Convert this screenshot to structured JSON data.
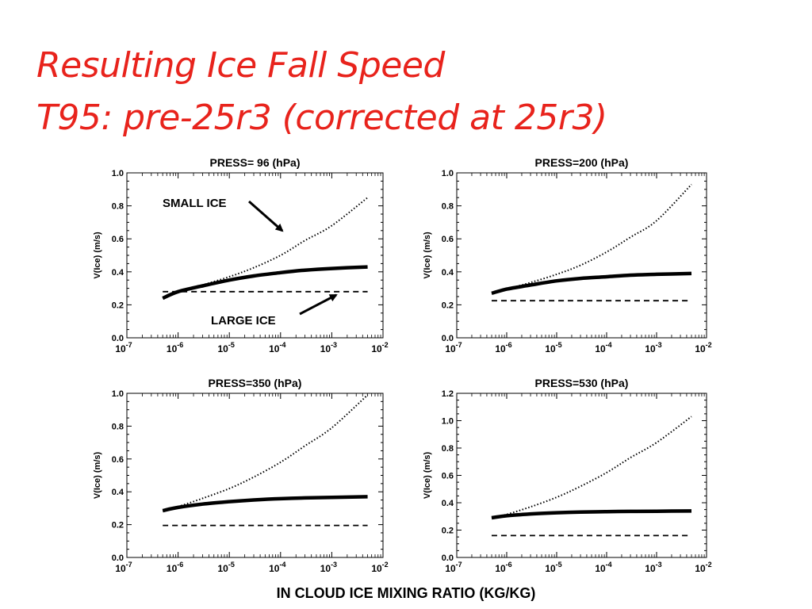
{
  "slide": {
    "title_line1": "Resulting Ice Fall Speed",
    "title_line2": "T95: pre-25r3 (corrected at 25r3)",
    "shared_xlabel": "IN CLOUD ICE MIXING RATIO (KG/KG)",
    "annotations": {
      "small_ice": "SMALL ICE",
      "large_ice": "LARGE ICE"
    },
    "colors": {
      "title": "#e8231c",
      "ink": "#000000"
    }
  },
  "chart_data": [
    {
      "type": "line",
      "title": "PRESS= 96 (hPa)",
      "ylabel": "V(Ice) (m/s)",
      "xscale": "log",
      "xlim": [
        1e-07,
        0.01
      ],
      "xtick_labels": [
        [
          "10",
          "-7"
        ],
        [
          "10",
          "-6"
        ],
        [
          "10",
          "-5"
        ],
        [
          "10",
          "-4"
        ],
        [
          "10",
          "-3"
        ],
        [
          "10",
          "-2"
        ]
      ],
      "ylim": [
        0.0,
        1.0
      ],
      "yticks": [
        "0.0",
        "0.2",
        "0.4",
        "0.6",
        "0.8",
        "1.0"
      ],
      "x": [
        5e-07,
        1e-06,
        3e-06,
        1e-05,
        3e-05,
        0.0001,
        0.0003,
        0.001,
        0.005
      ],
      "series": [
        {
          "style": "dotted",
          "values": [
            0.24,
            0.275,
            0.32,
            0.37,
            0.425,
            0.5,
            0.59,
            0.68,
            0.85
          ]
        },
        {
          "style": "solid",
          "values": [
            0.24,
            0.28,
            0.315,
            0.35,
            0.375,
            0.395,
            0.41,
            0.42,
            0.43
          ]
        },
        {
          "style": "dashed",
          "values": [
            0.28,
            0.28,
            0.28,
            0.28,
            0.28,
            0.28,
            0.28,
            0.28,
            0.28
          ]
        }
      ]
    },
    {
      "type": "line",
      "title": "PRESS=200 (hPa)",
      "ylabel": "V(Ice) (m/s)",
      "xscale": "log",
      "xlim": [
        1e-07,
        0.01
      ],
      "xtick_labels": [
        [
          "10",
          "-7"
        ],
        [
          "10",
          "-6"
        ],
        [
          "10",
          "-5"
        ],
        [
          "10",
          "-4"
        ],
        [
          "10",
          "-3"
        ],
        [
          "10",
          "-2"
        ]
      ],
      "ylim": [
        0.0,
        1.0
      ],
      "yticks": [
        "0.0",
        "0.2",
        "0.4",
        "0.6",
        "0.8",
        "1.0"
      ],
      "x": [
        5e-07,
        1e-06,
        3e-06,
        1e-05,
        3e-05,
        0.0001,
        0.0003,
        0.001,
        0.005
      ],
      "series": [
        {
          "style": "dotted",
          "values": [
            0.27,
            0.295,
            0.335,
            0.385,
            0.44,
            0.52,
            0.61,
            0.71,
            0.93
          ]
        },
        {
          "style": "solid",
          "values": [
            0.27,
            0.295,
            0.32,
            0.345,
            0.36,
            0.37,
            0.38,
            0.385,
            0.39
          ]
        },
        {
          "style": "dashed",
          "values": [
            0.225,
            0.225,
            0.225,
            0.225,
            0.225,
            0.225,
            0.225,
            0.225,
            0.225
          ]
        }
      ]
    },
    {
      "type": "line",
      "title": "PRESS=350 (hPa)",
      "ylabel": "V(Ice) (m/s)",
      "xscale": "log",
      "xlim": [
        1e-07,
        0.01
      ],
      "xtick_labels": [
        [
          "10",
          "-7"
        ],
        [
          "10",
          "-6"
        ],
        [
          "10",
          "-5"
        ],
        [
          "10",
          "-4"
        ],
        [
          "10",
          "-3"
        ],
        [
          "10",
          "-2"
        ]
      ],
      "ylim": [
        0.0,
        1.0
      ],
      "yticks": [
        "0.0",
        "0.2",
        "0.4",
        "0.6",
        "0.8",
        "1.0"
      ],
      "x": [
        5e-07,
        1e-06,
        3e-06,
        1e-05,
        3e-05,
        0.0001,
        0.0003,
        0.001,
        0.005
      ],
      "series": [
        {
          "style": "dotted",
          "values": [
            0.285,
            0.31,
            0.36,
            0.42,
            0.49,
            0.58,
            0.68,
            0.79,
            0.99
          ]
        },
        {
          "style": "solid",
          "values": [
            0.285,
            0.305,
            0.325,
            0.34,
            0.35,
            0.358,
            0.363,
            0.366,
            0.37
          ]
        },
        {
          "style": "dashed",
          "values": [
            0.195,
            0.195,
            0.195,
            0.195,
            0.195,
            0.195,
            0.195,
            0.195,
            0.195
          ]
        }
      ]
    },
    {
      "type": "line",
      "title": "PRESS=530 (hPa)",
      "ylabel": "V(Ice) (m/s)",
      "xscale": "log",
      "xlim": [
        1e-07,
        0.01
      ],
      "xtick_labels": [
        [
          "10",
          "-7"
        ],
        [
          "10",
          "-6"
        ],
        [
          "10",
          "-5"
        ],
        [
          "10",
          "-4"
        ],
        [
          "10",
          "-3"
        ],
        [
          "10",
          "-2"
        ]
      ],
      "ylim": [
        0.0,
        1.2
      ],
      "yticks": [
        "0.0",
        "0.2",
        "0.4",
        "0.6",
        "0.8",
        "1.0",
        "1.2"
      ],
      "x": [
        5e-07,
        1e-06,
        3e-06,
        1e-05,
        3e-05,
        0.0001,
        0.0003,
        0.001,
        0.005
      ],
      "series": [
        {
          "style": "dotted",
          "values": [
            0.29,
            0.315,
            0.37,
            0.44,
            0.52,
            0.62,
            0.73,
            0.84,
            1.03
          ]
        },
        {
          "style": "solid",
          "values": [
            0.29,
            0.305,
            0.318,
            0.327,
            0.332,
            0.335,
            0.337,
            0.338,
            0.34
          ]
        },
        {
          "style": "dashed",
          "values": [
            0.16,
            0.16,
            0.16,
            0.16,
            0.16,
            0.16,
            0.16,
            0.16,
            0.16
          ]
        }
      ]
    }
  ]
}
